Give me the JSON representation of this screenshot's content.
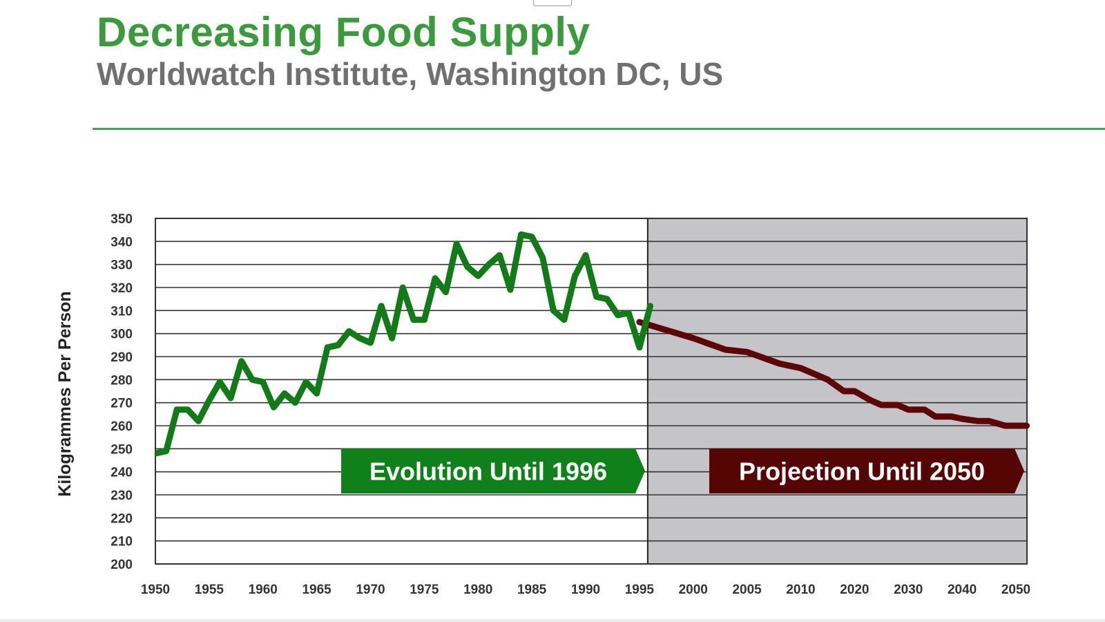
{
  "slide": {
    "title": "Decreasing Food Supply",
    "subtitle": "Worldwatch Institute, Washington DC, US"
  },
  "colors": {
    "title_green": "#3b9a3b",
    "subtitle_gray": "#707070",
    "rule_green": "#3fa35a",
    "history_line": "#137a18",
    "projection_line": "#5e0606",
    "history_banner": "#10801a",
    "projection_banner": "#560505",
    "projection_shade": "#c5c4c8"
  },
  "chart_data": {
    "type": "line",
    "ylabel": "Kilogrammes Per Person",
    "ylim": [
      200,
      350
    ],
    "yticks": [
      "350",
      "340",
      "330",
      "320",
      "310",
      "300",
      "290",
      "280",
      "270",
      "260",
      "250",
      "240",
      "230",
      "220",
      "210",
      "200"
    ],
    "xtick_labels": [
      "1950",
      "1955",
      "1960",
      "1965",
      "1970",
      "1975",
      "1980",
      "1985",
      "1990",
      "1995",
      "2000",
      "2005",
      "2010",
      "2020",
      "2030",
      "2040",
      "2050"
    ],
    "grid": true,
    "shaded_region_start_tick": "1995",
    "annotations": [
      {
        "text": "Evolution Until 1996",
        "series": "history"
      },
      {
        "text": "Projection Until 2050",
        "series": "projection"
      }
    ],
    "series": [
      {
        "id": "history",
        "x": [
          1950,
          1951,
          1952,
          1953,
          1954,
          1955,
          1956,
          1957,
          1958,
          1959,
          1960,
          1961,
          1962,
          1963,
          1964,
          1965,
          1966,
          1967,
          1968,
          1969,
          1970,
          1971,
          1972,
          1973,
          1974,
          1975,
          1976,
          1977,
          1978,
          1979,
          1980,
          1981,
          1982,
          1983,
          1984,
          1985,
          1986,
          1987,
          1988,
          1989,
          1990,
          1991,
          1992,
          1993,
          1994,
          1995,
          1996
        ],
        "y": [
          248,
          249,
          267,
          267,
          262,
          271,
          279,
          272,
          288,
          280,
          279,
          268,
          274,
          270,
          279,
          274,
          294,
          295,
          301,
          298,
          296,
          312,
          298,
          320,
          306,
          306,
          324,
          318,
          339,
          329,
          325,
          330,
          334,
          319,
          343,
          342,
          333,
          310,
          306,
          325,
          334,
          316,
          315,
          308,
          309,
          294,
          312
        ]
      },
      {
        "id": "projection",
        "x": [
          1995,
          2000,
          2003,
          2005,
          2008,
          2010,
          2013,
          2015,
          2018,
          2020,
          2023,
          2025,
          2028,
          2030,
          2033,
          2035,
          2038,
          2040,
          2043,
          2045,
          2048,
          2050,
          2052
        ],
        "y": [
          305,
          298,
          293,
          292,
          287,
          285,
          282,
          280,
          275,
          275,
          271,
          269,
          269,
          267,
          267,
          264,
          264,
          263,
          262,
          262,
          260,
          260,
          260
        ]
      }
    ]
  }
}
